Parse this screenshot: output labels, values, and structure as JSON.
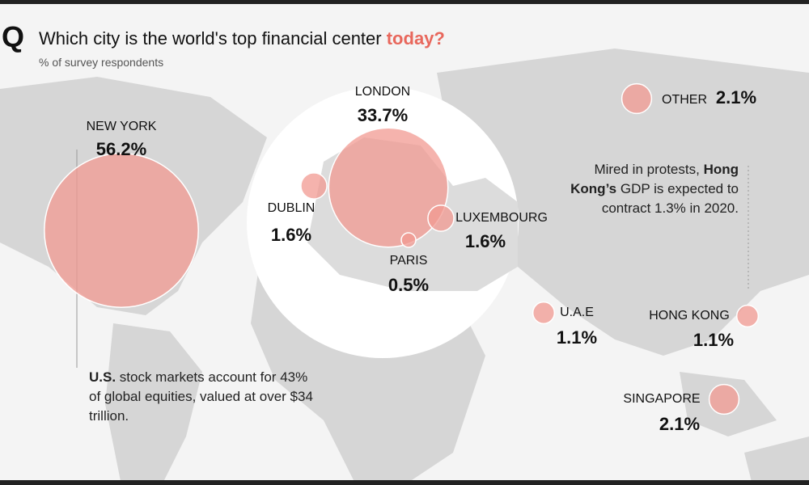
{
  "chart_data": {
    "type": "bubble",
    "logo": "Q",
    "title": "Which city is the world's top financial center",
    "title_highlight": "today?",
    "subtitle": "% of survey respondents",
    "categories": [
      "NEW YORK",
      "LONDON",
      "DUBLIN",
      "LUXEMBOURG",
      "PARIS",
      "U.A.E",
      "HONG KONG",
      "SINGAPORE",
      "OTHER"
    ],
    "values": [
      56.2,
      33.7,
      1.6,
      1.6,
      0.5,
      1.1,
      1.1,
      2.1,
      2.1
    ],
    "value_labels": [
      "56.2%",
      "33.7%",
      "1.6%",
      "1.6%",
      "0.5%",
      "1.1%",
      "1.1%",
      "2.1%",
      "2.1%"
    ],
    "color": "#f29a92",
    "highlight_color": "#e8675c",
    "annotations": [
      {
        "parts": [
          {
            "text": "U.S.",
            "bold": true
          },
          {
            "text": " stock markets account for 43% of global equities, valued at over $34 trillion.",
            "bold": false
          }
        ]
      },
      {
        "parts": [
          {
            "text": "Mired in protests, ",
            "bold": false
          },
          {
            "text": "Hong Kong’s",
            "bold": true
          },
          {
            "text": " GDP is expected to contract 1.3% in 2020.",
            "bold": false
          }
        ]
      }
    ]
  }
}
